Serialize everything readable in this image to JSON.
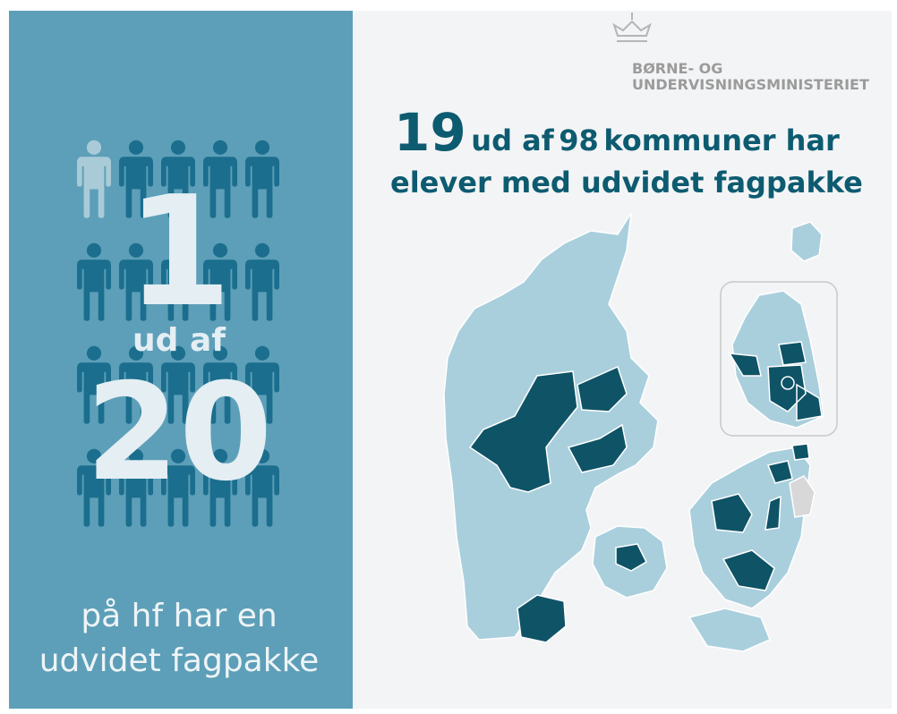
{
  "left_panel": {
    "number_top": "1",
    "connector": "ud af",
    "number_bottom": "20",
    "caption_lines": [
      "på hf har en",
      "udvidet fagpakke"
    ]
  },
  "logo": {
    "lines": [
      "BØRNE- OG",
      "UNDERVISNINGSMINISTERIET"
    ]
  },
  "headline": {
    "count": "19",
    "connector": "ud af",
    "total": "98",
    "line1_rest": "kommuner har",
    "line2": "elever med udvidet fagpakke"
  }
}
